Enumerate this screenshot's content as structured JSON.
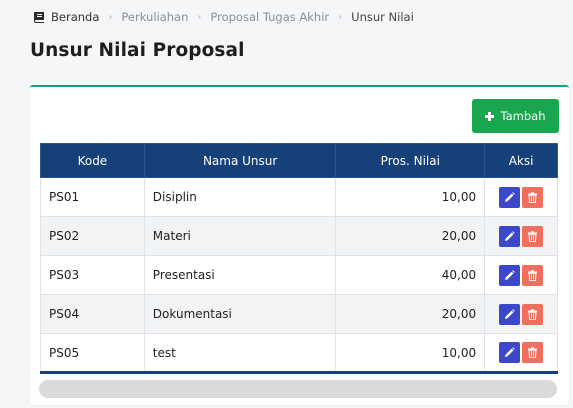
{
  "breadcrumb": {
    "items": [
      "Beranda",
      "Perkuliahan",
      "Proposal Tugas Akhir",
      "Unsur Nilai"
    ]
  },
  "page": {
    "title": "Unsur Nilai Proposal"
  },
  "toolbar": {
    "add_label": "Tambah"
  },
  "table": {
    "headers": [
      "Kode",
      "Nama Unsur",
      "Pros. Nilai",
      "Aksi"
    ],
    "rows": [
      {
        "kode": "PS01",
        "nama": "Disiplin",
        "nilai": "10,00"
      },
      {
        "kode": "PS02",
        "nama": "Materi",
        "nilai": "20,00"
      },
      {
        "kode": "PS03",
        "nama": "Presentasi",
        "nilai": "40,00"
      },
      {
        "kode": "PS04",
        "nama": "Dokumentasi",
        "nilai": "20,00"
      },
      {
        "kode": "PS05",
        "nama": "test",
        "nilai": "10,00"
      }
    ]
  },
  "colors": {
    "header_bg": "#164079",
    "accent_green": "#1aa64e",
    "edit_blue": "#3d47c9",
    "delete_red": "#ef6f5e"
  },
  "icons": {
    "home": "book-icon",
    "add": "plus-icon",
    "edit": "pencil-icon",
    "delete": "trash-icon"
  }
}
